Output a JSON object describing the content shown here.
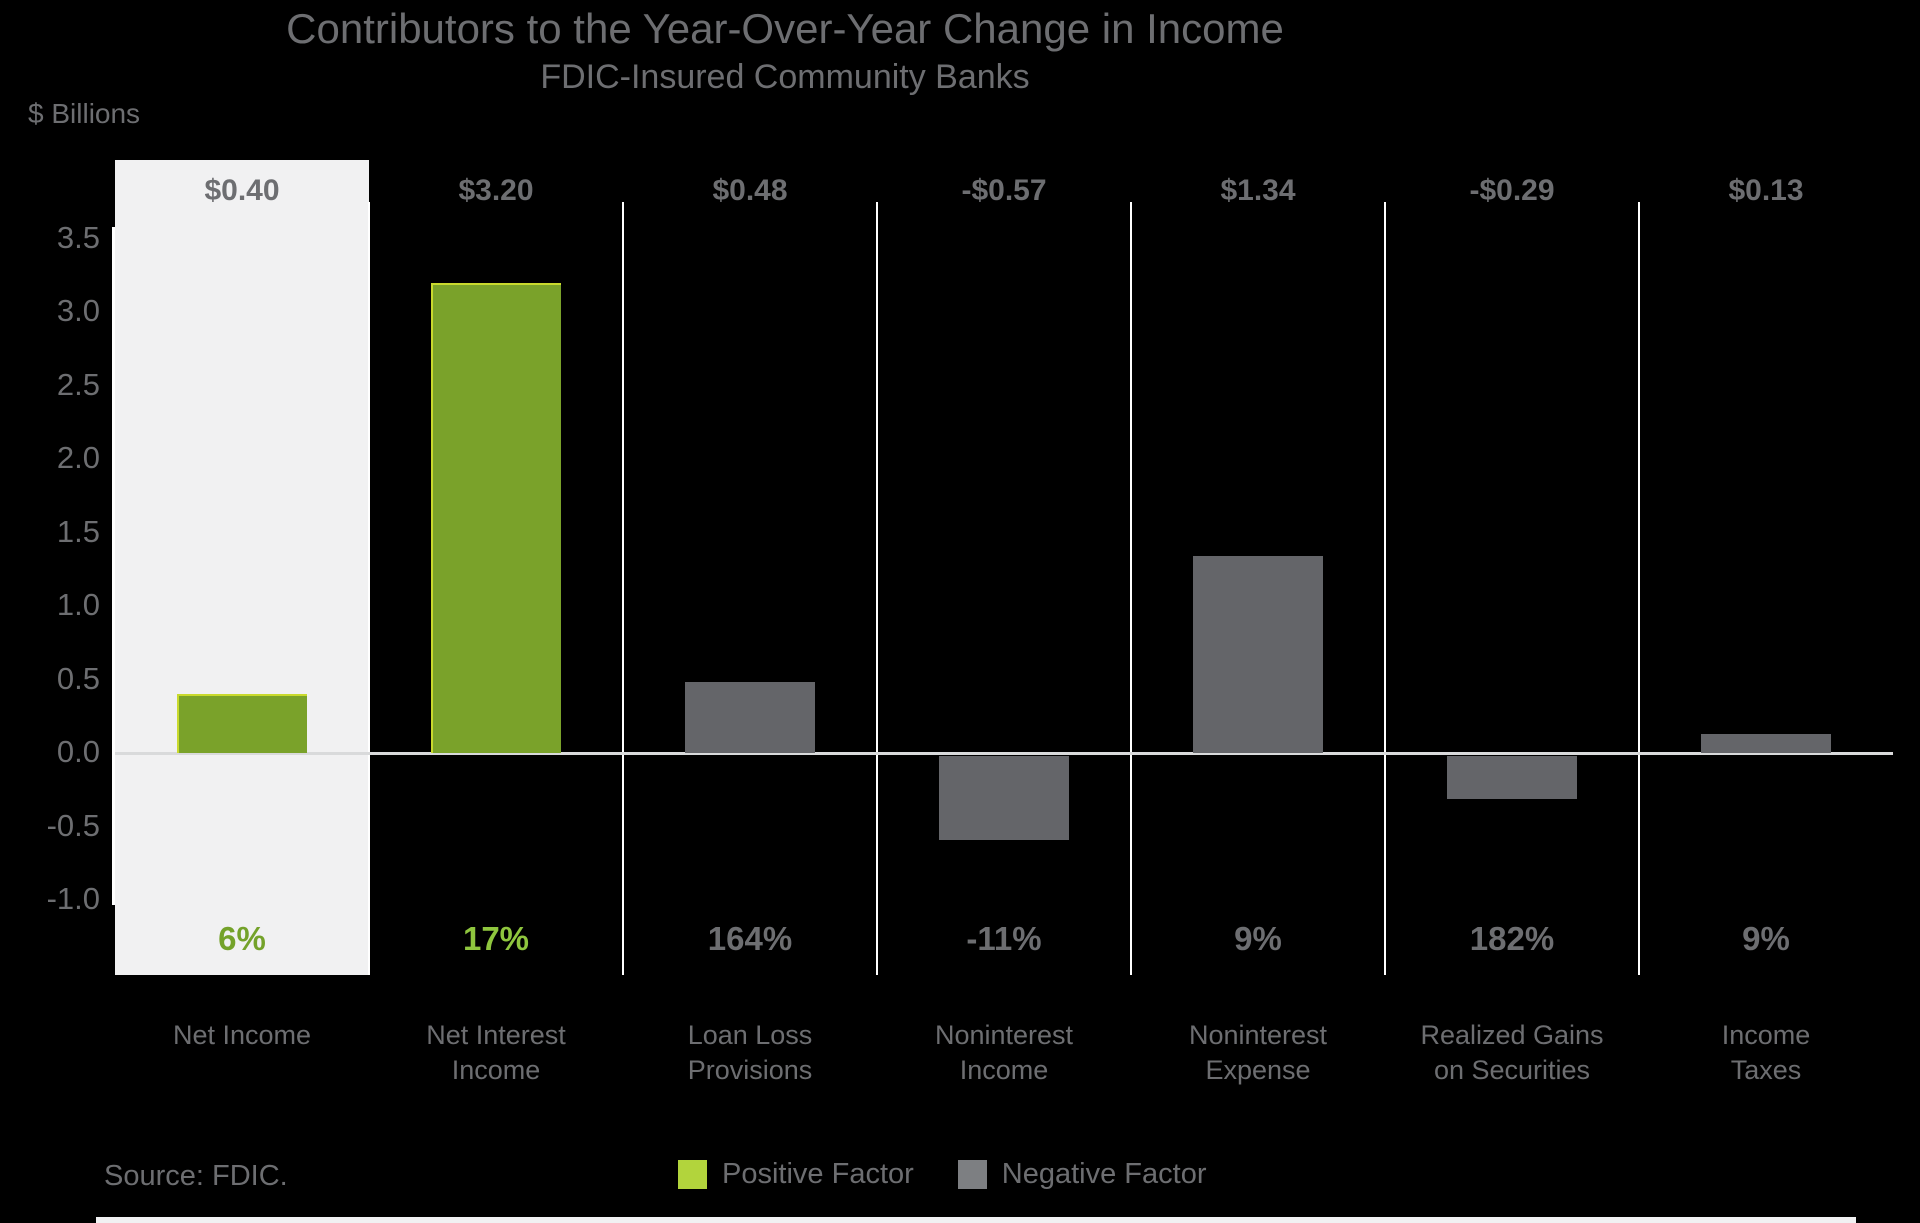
{
  "page": {
    "title": "Contributors to the Year-Over-Year Change in Income",
    "subtitle": "FDIC-Insured Community Banks",
    "y_axis_label": "$ Billions",
    "source": "Source: FDIC."
  },
  "legend": {
    "items": [
      {
        "label": "Positive Factor",
        "swatch_color": "#b2d43c",
        "type": "positive"
      },
      {
        "label": "Negative Factor",
        "swatch_color": "#7d7f82",
        "type": "negative"
      }
    ]
  },
  "colors": {
    "background": "#000000",
    "text_gray": "#6d6e71",
    "positive_bar": "#7aa22a",
    "positive_bar_edge": "#c9da2d",
    "negative_bar": "#646569",
    "highlight_column_bg": "#f1f1f2",
    "zero_line": "#d9dadb",
    "separator": "#ffffff",
    "pct_green_highlight_column": "#74a22a",
    "pct_green_dark_background": "#8fc63e"
  },
  "chart_data": {
    "type": "bar",
    "title": "Contributors to the Year-Over-Year Change in Income",
    "subtitle": "FDIC-Insured Community Banks",
    "xlabel": "",
    "ylabel": "$ Billions",
    "ylim": [
      -1.0,
      3.5
    ],
    "ytick_step": 0.5,
    "yticks": [
      "3.5",
      "3.0",
      "2.5",
      "2.0",
      "1.5",
      "1.0",
      "0.5",
      "0.0",
      "-0.5",
      "-1.0"
    ],
    "categories": [
      "Net Income",
      "Net Interest Income",
      "Loan Loss Provisions",
      "Noninterest Income",
      "Noninterest Expense",
      "Realized Gains on Securities",
      "Income Taxes"
    ],
    "category_label_lines": [
      [
        "Net Income"
      ],
      [
        "Net Interest",
        "Income"
      ],
      [
        "Loan Loss",
        "Provisions"
      ],
      [
        "Noninterest",
        "Income"
      ],
      [
        "Noninterest",
        "Expense"
      ],
      [
        "Realized Gains",
        "on Securities"
      ],
      [
        "Income",
        "Taxes"
      ]
    ],
    "values": [
      0.4,
      3.2,
      0.48,
      -0.57,
      1.34,
      -0.29,
      0.13
    ],
    "value_labels": [
      "$0.40",
      "$3.20",
      "$0.48",
      "-$0.57",
      "$1.34",
      "-$0.29",
      "$0.13"
    ],
    "pct_change_labels": [
      "6%",
      "17%",
      "164%",
      "-11%",
      "9%",
      "182%",
      "9%"
    ],
    "factor": [
      "positive",
      "positive",
      "negative",
      "negative",
      "negative",
      "negative",
      "negative"
    ],
    "highlighted": [
      true,
      false,
      false,
      false,
      false,
      false,
      false
    ],
    "grid": "vertical-column-separators",
    "legend_position": "bottom",
    "legend_entries": [
      "Positive Factor",
      "Negative Factor"
    ]
  }
}
